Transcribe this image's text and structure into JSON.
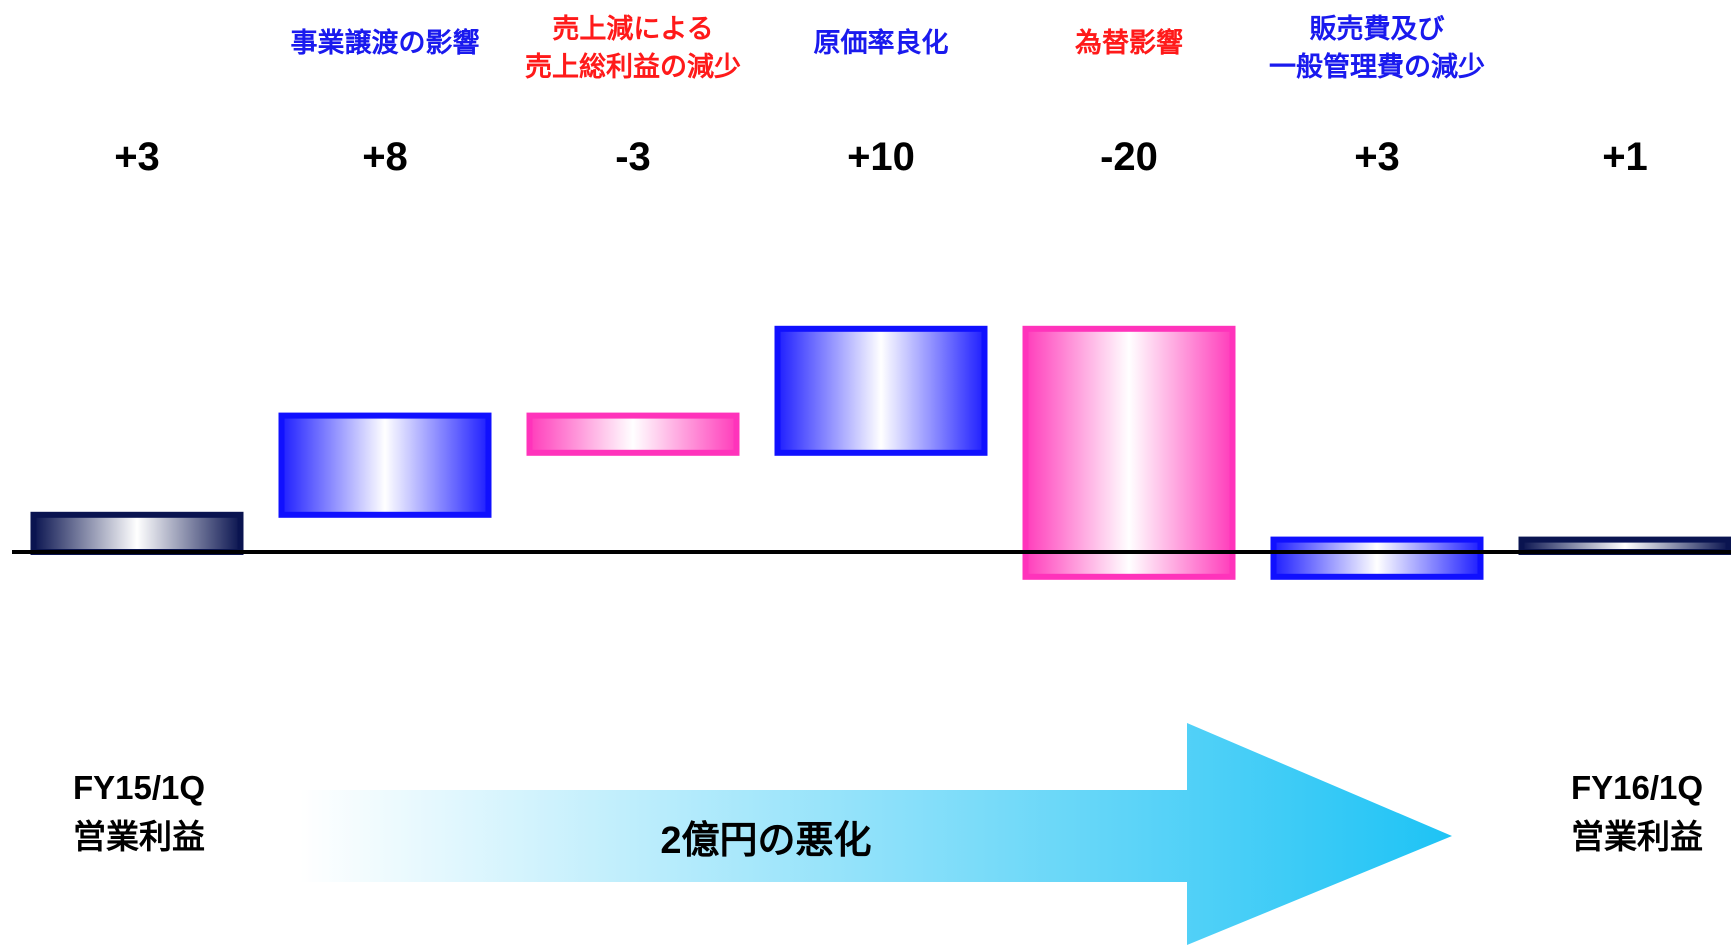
{
  "chart_data": {
    "type": "waterfall",
    "title": "",
    "xlabel": "",
    "ylabel": "",
    "grid": false,
    "ylim": [
      -3,
      26
    ],
    "items": [
      {
        "category": "FY15/1Q 営業利益",
        "category_lines": [],
        "value_label": "+3",
        "start": 0,
        "end": 3,
        "kind": "total"
      },
      {
        "category": "事業譲渡の影響",
        "category_lines": [
          "事業譲渡の影響"
        ],
        "value_label": "+8",
        "start": 3,
        "end": 11,
        "kind": "increase"
      },
      {
        "category": "売上減による売上総利益の減少",
        "category_lines": [
          "売上減による",
          "売上総利益の減少"
        ],
        "value_label": "-3",
        "start": 11,
        "end": 8,
        "kind": "decrease"
      },
      {
        "category": "原価率良化",
        "category_lines": [
          "原価率良化"
        ],
        "value_label": "+10",
        "start": 8,
        "end": 18,
        "kind": "increase"
      },
      {
        "category": "為替影響",
        "category_lines": [
          "為替影響"
        ],
        "value_label": "-20",
        "start": 18,
        "end": -2,
        "kind": "decrease"
      },
      {
        "category": "販売費及び一般管理費の減少",
        "category_lines": [
          "販売費及び",
          "一般管理費の減少"
        ],
        "value_label": "+3",
        "start": -2,
        "end": 1,
        "kind": "increase"
      },
      {
        "category": "FY16/1Q 営業利益",
        "category_lines": [],
        "value_label": "+1",
        "start": 0,
        "end": 1,
        "kind": "total"
      }
    ],
    "axis_labels": {
      "start": [
        "FY15/1Q",
        "営業利益"
      ],
      "end": [
        "FY16/1Q",
        "営業利益"
      ]
    },
    "arrow_label": "2億円の悪化",
    "colors": {
      "increase": "#1010ff",
      "decrease": "#ff33bb",
      "total": "#0a1450",
      "label_increase": "#1a1aee",
      "label_decrease": "#ff1a1a",
      "arrow": "#22c4f5"
    }
  }
}
